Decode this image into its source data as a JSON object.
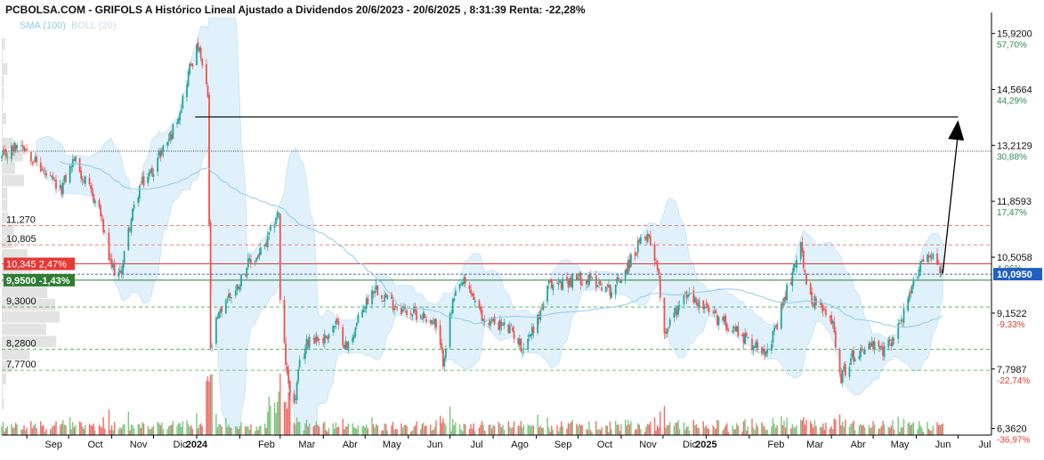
{
  "header": {
    "title": "PCBOLSA.COM - GRIFOLS A Histórico Lineal Ajustado a Dividendos 20/6/2023 - 20/6/2025 , 8:31:39 Renta: -22,28%"
  },
  "legend": {
    "sma": "SMA (100)",
    "boll": "BOLL (20)"
  },
  "colors": {
    "up": "#26a69a",
    "down": "#ef5350",
    "sma": "#8fcbea",
    "band": "#d6ecfb",
    "current_label": "#1f5fbf",
    "red_label": "#e53935",
    "green_label": "#2e7d32"
  },
  "chart_data": {
    "type": "candlestick",
    "title": "GRIFOLS A Histórico Lineal Ajustado a Dividendos",
    "ylim": [
      6.2,
      16.3
    ],
    "xlim": [
      "2023-08-14",
      "2025-07-25"
    ],
    "grid": false,
    "y_axis": {
      "ticks": [
        {
          "value": 15.92,
          "label": "15,9200",
          "pct": "57,70%"
        },
        {
          "value": 14.5664,
          "label": "14,5664",
          "pct": "44,29%"
        },
        {
          "value": 13.2129,
          "label": "13,2129",
          "pct": "30,88%"
        },
        {
          "value": 11.8593,
          "label": "11,8593",
          "pct": "17,47%"
        },
        {
          "value": 10.5058,
          "label": "10,5058",
          "pct": "4,06%"
        },
        {
          "value": 9.1522,
          "label": "9,1522",
          "pct": "-9,33%"
        },
        {
          "value": 7.7987,
          "label": "7,7987",
          "pct": "-22,74%"
        },
        {
          "value": 6.362,
          "label": "6,3620",
          "pct": "-36,97%"
        }
      ],
      "current": {
        "value": 10.095,
        "label": "10,0950"
      }
    },
    "x_axis": {
      "ticks": [
        {
          "date": "2023-09-01",
          "label": "Sep",
          "bold": false
        },
        {
          "date": "2023-10-01",
          "label": "Oct",
          "bold": false
        },
        {
          "date": "2023-11-01",
          "label": "Nov",
          "bold": false
        },
        {
          "date": "2023-12-01",
          "label": "Dic",
          "bold": false
        },
        {
          "date": "2024-01-01",
          "label": "2024",
          "bold": true
        },
        {
          "date": "2024-02-01",
          "label": "Feb",
          "bold": false
        },
        {
          "date": "2024-03-01",
          "label": "Mar",
          "bold": false
        },
        {
          "date": "2024-04-01",
          "label": "Abr",
          "bold": false
        },
        {
          "date": "2024-05-01",
          "label": "May",
          "bold": false
        },
        {
          "date": "2024-06-01",
          "label": "Jun",
          "bold": false
        },
        {
          "date": "2024-07-01",
          "label": "Jul",
          "bold": false
        },
        {
          "date": "2024-08-01",
          "label": "Ago",
          "bold": false
        },
        {
          "date": "2024-09-01",
          "label": "Sep",
          "bold": false
        },
        {
          "date": "2024-10-01",
          "label": "Oct",
          "bold": false
        },
        {
          "date": "2024-11-01",
          "label": "Nov",
          "bold": false
        },
        {
          "date": "2024-12-01",
          "label": "Dic",
          "bold": false
        },
        {
          "date": "2025-01-01",
          "label": "2025",
          "bold": true
        },
        {
          "date": "2025-02-01",
          "label": "Feb",
          "bold": false
        },
        {
          "date": "2025-03-01",
          "label": "Mar",
          "bold": false
        },
        {
          "date": "2025-04-01",
          "label": "Abr",
          "bold": false
        },
        {
          "date": "2025-05-01",
          "label": "May",
          "bold": false
        },
        {
          "date": "2025-06-01",
          "label": "Jun",
          "bold": false
        },
        {
          "date": "2025-07-01",
          "label": "Jul",
          "bold": false
        }
      ]
    },
    "levels": [
      {
        "value": 11.27,
        "label": "11,270",
        "style": "dashed",
        "color": "#e57373",
        "tag": "plain"
      },
      {
        "value": 10.805,
        "label": "10,805",
        "style": "dashed",
        "color": "#e57373",
        "tag": "plain"
      },
      {
        "value": 10.345,
        "label": "10,345 2,47%",
        "style": "solid",
        "color": "#e53935",
        "tag": "red"
      },
      {
        "value": 9.95,
        "label": "9,9500 -1,43%",
        "style": "solid",
        "color": "#2e7d32",
        "tag": "green"
      },
      {
        "value": 9.3,
        "label": "9,3000",
        "style": "dashed",
        "color": "#4caf50",
        "tag": "plain"
      },
      {
        "value": 8.28,
        "label": "8,2800",
        "style": "dashed",
        "color": "#4caf50",
        "tag": "plain"
      },
      {
        "value": 7.77,
        "label": "7,7700",
        "style": "dashed",
        "color": "#4caf50",
        "tag": "plain"
      }
    ],
    "annotations": {
      "hline_top": {
        "value": 13.9,
        "from": "2023-12-31",
        "to": "2025-07-01"
      },
      "dotted_line": {
        "value": 13.07
      },
      "arrow": {
        "from": {
          "date": "2025-06-20",
          "value": 10.12
        },
        "to": {
          "date": "2025-07-01",
          "value": 13.82
        }
      }
    },
    "anchors": [
      [
        "2023-08-14",
        12.9
      ],
      [
        "2023-08-28",
        13.3
      ],
      [
        "2023-09-12",
        12.6
      ],
      [
        "2023-09-25",
        12.1
      ],
      [
        "2023-10-05",
        12.9
      ],
      [
        "2023-10-13",
        12.3
      ],
      [
        "2023-10-23",
        11.7
      ],
      [
        "2023-10-31",
        10.3
      ],
      [
        "2023-11-07",
        10.05
      ],
      [
        "2023-11-14",
        11.3
      ],
      [
        "2023-11-21",
        12.2
      ],
      [
        "2023-11-30",
        12.6
      ],
      [
        "2023-12-07",
        13.1
      ],
      [
        "2023-12-14",
        13.5
      ],
      [
        "2023-12-21",
        14.2
      ],
      [
        "2023-12-27",
        15.1
      ],
      [
        "2024-01-02",
        15.6
      ],
      [
        "2024-01-05",
        15.1
      ],
      [
        "2024-01-09",
        14.4
      ],
      [
        "2024-01-11",
        8.2
      ],
      [
        "2024-01-15",
        8.9
      ],
      [
        "2024-01-22",
        9.5
      ],
      [
        "2024-01-29",
        9.7
      ],
      [
        "2024-02-06",
        10.3
      ],
      [
        "2024-02-13",
        10.5
      ],
      [
        "2024-02-20",
        10.8
      ],
      [
        "2024-02-27",
        11.5
      ],
      [
        "2024-02-29",
        11.6
      ],
      [
        "2024-03-01",
        9.4
      ],
      [
        "2024-03-06",
        7.6
      ],
      [
        "2024-03-11",
        6.9
      ],
      [
        "2024-03-15",
        7.9
      ],
      [
        "2024-03-22",
        8.6
      ],
      [
        "2024-04-01",
        8.5
      ],
      [
        "2024-04-10",
        8.9
      ],
      [
        "2024-04-18",
        8.3
      ],
      [
        "2024-04-30",
        9.3
      ],
      [
        "2024-05-08",
        9.8
      ],
      [
        "2024-05-20",
        9.4
      ],
      [
        "2024-05-31",
        9.2
      ],
      [
        "2024-06-12",
        9.1
      ],
      [
        "2024-06-20",
        8.9
      ],
      [
        "2024-06-26",
        8.0
      ],
      [
        "2024-07-03",
        9.4
      ],
      [
        "2024-07-10",
        9.9
      ],
      [
        "2024-07-17",
        9.6
      ],
      [
        "2024-07-24",
        9.0
      ],
      [
        "2024-08-05",
        8.9
      ],
      [
        "2024-08-15",
        8.7
      ],
      [
        "2024-08-22",
        8.3
      ],
      [
        "2024-09-02",
        9.0
      ],
      [
        "2024-09-10",
        9.8
      ],
      [
        "2024-09-20",
        9.9
      ],
      [
        "2024-10-03",
        10.0
      ],
      [
        "2024-10-15",
        9.9
      ],
      [
        "2024-10-25",
        9.7
      ],
      [
        "2024-11-04",
        10.2
      ],
      [
        "2024-11-12",
        10.7
      ],
      [
        "2024-11-20",
        11.1
      ],
      [
        "2024-11-27",
        10.3
      ],
      [
        "2024-12-02",
        8.7
      ],
      [
        "2024-12-10",
        9.2
      ],
      [
        "2024-12-18",
        9.6
      ],
      [
        "2024-12-30",
        9.3
      ],
      [
        "2025-01-10",
        9.0
      ],
      [
        "2025-01-21",
        8.8
      ],
      [
        "2025-02-03",
        8.4
      ],
      [
        "2025-02-12",
        8.3
      ],
      [
        "2025-02-20",
        8.7
      ],
      [
        "2025-02-27",
        9.6
      ],
      [
        "2025-03-05",
        10.2
      ],
      [
        "2025-03-10",
        11.0
      ],
      [
        "2025-03-14",
        9.7
      ],
      [
        "2025-03-21",
        9.4
      ],
      [
        "2025-04-02",
        8.9
      ],
      [
        "2025-04-08",
        7.6
      ],
      [
        "2025-04-16",
        8.1
      ],
      [
        "2025-04-28",
        8.4
      ],
      [
        "2025-05-08",
        8.2
      ],
      [
        "2025-05-16",
        8.6
      ],
      [
        "2025-05-26",
        9.4
      ],
      [
        "2025-06-04",
        10.4
      ],
      [
        "2025-06-12",
        10.6
      ],
      [
        "2025-06-20",
        10.1
      ]
    ]
  }
}
